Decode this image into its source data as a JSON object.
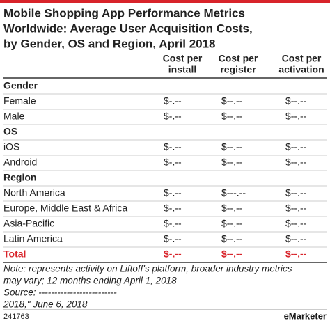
{
  "header": {
    "title": [
      "Mobile Shopping App Performance Metrics",
      "Worldwide: Average User Acquisition Costs,",
      "by Gender, OS and Region, April 2018"
    ]
  },
  "table": {
    "columns": [
      [
        "Cost per",
        "install"
      ],
      [
        "Cost per",
        "register"
      ],
      [
        "Cost per",
        "activation"
      ]
    ],
    "sections": [
      {
        "label": "Gender",
        "rows": [
          {
            "label": "Female",
            "values": [
              "$-.--",
              "$--.--",
              "$--.--"
            ]
          },
          {
            "label": "Male",
            "values": [
              "$-.--",
              "$--.--",
              "$--.--"
            ]
          }
        ]
      },
      {
        "label": "OS",
        "rows": [
          {
            "label": "iOS",
            "values": [
              "$-.--",
              "$--.--",
              "$--.--"
            ]
          },
          {
            "label": "Android",
            "values": [
              "$-.--",
              "$--.--",
              "$--.--"
            ]
          }
        ]
      },
      {
        "label": "Region",
        "rows": [
          {
            "label": "North America",
            "values": [
              "$-.--",
              "$---.--",
              "$--.--"
            ]
          },
          {
            "label": "Europe, Middle East & Africa",
            "values": [
              "$-.--",
              "$--.--",
              "$--.--"
            ]
          },
          {
            "label": "Asia-Pacific",
            "values": [
              "$-.--",
              "$--.--",
              "$--.--"
            ]
          },
          {
            "label": "Latin America",
            "values": [
              "$-.--",
              "$--.--",
              "$--.--"
            ]
          }
        ]
      }
    ],
    "total": {
      "label": "Total",
      "values": [
        "$-.--",
        "$--.--",
        "$--.--"
      ]
    }
  },
  "note": [
    "Note: represents activity on Liftoff's platform, broader industry metrics",
    "may vary; 12 months ending April 1, 2018",
    "Source: -------------------------",
    "2018,\" June 6, 2018"
  ],
  "footer": {
    "id": "241763",
    "logo": "eMarketer"
  }
}
